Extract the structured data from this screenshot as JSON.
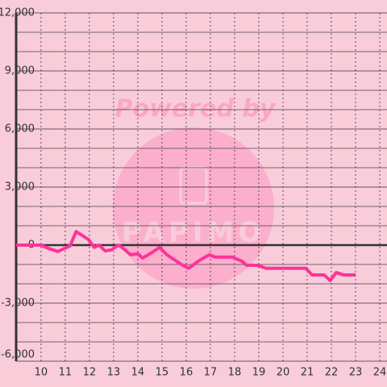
{
  "chart_data": {
    "type": "line",
    "watermark": {
      "title": "Powered by",
      "brand": "PAPIMO"
    },
    "x": [
      8.97,
      10,
      10.3,
      10.7,
      11.2,
      11.45,
      11.95,
      12.2,
      12.4,
      12.65,
      12.9,
      13.2,
      13.4,
      13.7,
      14.0,
      14.2,
      14.6,
      14.9,
      15.2,
      15.5,
      15.8,
      16.1,
      16.5,
      16.95,
      17.2,
      17.9,
      18.3,
      18.5,
      18.95,
      19.3,
      20.95,
      21.2,
      21.7,
      21.95,
      22.2,
      22.5,
      23.0
    ],
    "series": [
      {
        "color": "#ff3399",
        "values": [
          0,
          0,
          -170,
          -330,
          -40,
          700,
          300,
          -120,
          0,
          -300,
          -250,
          0,
          -170,
          -500,
          -450,
          -670,
          -370,
          -120,
          -500,
          -750,
          -1000,
          -1200,
          -830,
          -500,
          -620,
          -620,
          -830,
          -1040,
          -1040,
          -1200,
          -1200,
          -1540,
          -1540,
          -1830,
          -1420,
          -1540,
          -1540
        ]
      }
    ],
    "xlim": [
      8.97,
      24.3
    ],
    "xticks": [
      10,
      11,
      12,
      13,
      14,
      15,
      16,
      17,
      18,
      19,
      20,
      21,
      22,
      23,
      24
    ],
    "ylim": [
      -6000,
      12000
    ],
    "yticks": [
      {
        "value": -6000,
        "label": "-6,000"
      },
      {
        "value": -3000,
        "label": "-3,000"
      },
      0,
      {
        "value": 3000,
        "label": "3,000"
      },
      {
        "value": 6000,
        "label": "6,000"
      },
      {
        "value": 9000,
        "label": "9,000"
      },
      {
        "value": 12000,
        "label": "12,000"
      }
    ],
    "grid": true
  }
}
